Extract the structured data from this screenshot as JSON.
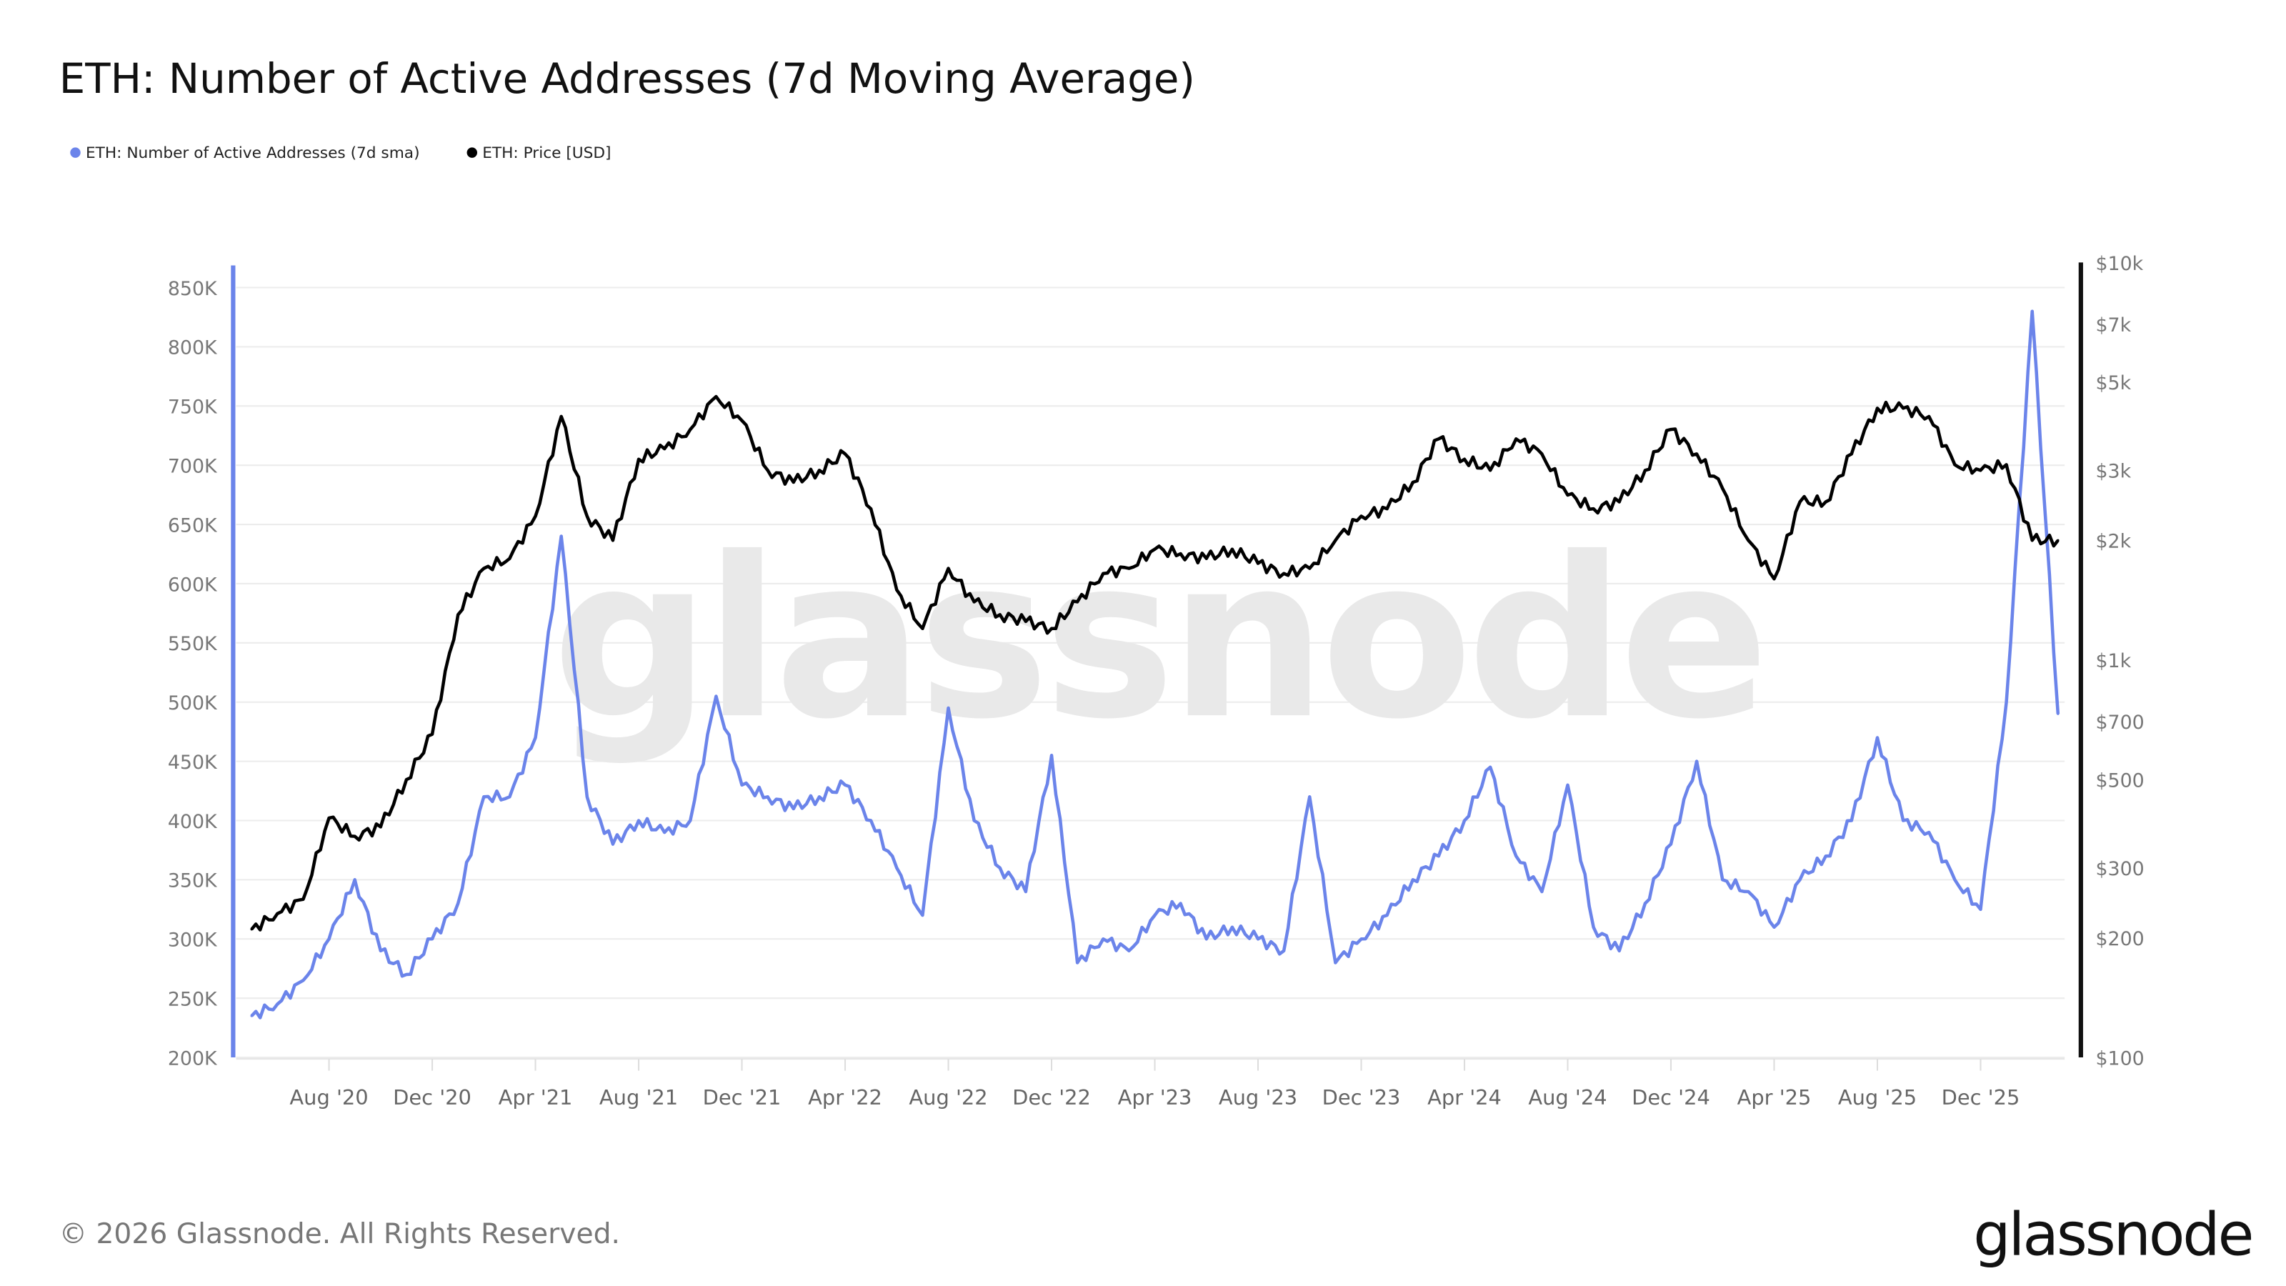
{
  "title": "ETH: Number of Active Addresses (7d Moving Average)",
  "footer": {
    "copyright": "© 2026 Glassnode. All Rights Reserved.",
    "logo": "glassnode"
  },
  "watermark": "glassnode",
  "colors": {
    "addresses": "#6b84ea",
    "price": "#000000",
    "grid": "#ececec"
  },
  "chart_data": {
    "type": "line",
    "title": "ETH: Number of Active Addresses (7d Moving Average)",
    "legend": [
      "ETH: Number of Active Addresses (7d sma)",
      "ETH: Price [USD]"
    ],
    "legend_position": "top-left",
    "x": [
      "2020-05",
      "2020-06",
      "2020-07",
      "2020-08",
      "2020-09",
      "2020-10",
      "2020-11",
      "2020-12",
      "2021-01",
      "2021-02",
      "2021-03",
      "2021-04",
      "2021-05",
      "2021-06",
      "2021-07",
      "2021-08",
      "2021-09",
      "2021-10",
      "2021-11",
      "2021-12",
      "2022-01",
      "2022-02",
      "2022-03",
      "2022-04",
      "2022-05",
      "2022-06",
      "2022-07",
      "2022-08",
      "2022-09",
      "2022-10",
      "2022-11",
      "2022-12",
      "2023-01",
      "2023-02",
      "2023-03",
      "2023-04",
      "2023-05",
      "2023-06",
      "2023-07",
      "2023-08",
      "2023-09",
      "2023-10",
      "2023-11",
      "2023-12",
      "2024-01",
      "2024-02",
      "2024-03",
      "2024-04",
      "2024-05",
      "2024-06",
      "2024-07",
      "2024-08",
      "2024-09",
      "2024-10",
      "2024-11",
      "2024-12",
      "2025-01",
      "2025-02",
      "2025-03",
      "2025-04",
      "2025-05",
      "2025-06",
      "2025-07",
      "2025-08",
      "2025-09",
      "2025-10",
      "2025-11",
      "2025-12",
      "2026-01",
      "2026-02",
      "2026-03"
    ],
    "series": [
      {
        "name": "ETH: Number of Active Addresses (7d sma)",
        "axis": "left",
        "values": [
          235,
          245,
          265,
          300,
          350,
          290,
          270,
          300,
          330,
          420,
          420,
          470,
          640,
          420,
          380,
          400,
          390,
          400,
          505,
          430,
          420,
          410,
          420,
          430,
          400,
          360,
          320,
          495,
          400,
          360,
          340,
          455,
          280,
          300,
          290,
          320,
          330,
          300,
          310,
          300,
          290,
          420,
          280,
          300,
          320,
          350,
          370,
          400,
          445,
          370,
          340,
          430,
          310,
          290,
          330,
          380,
          450,
          350,
          340,
          310,
          350,
          370,
          400,
          470,
          400,
          390,
          350,
          325,
          500,
          830,
          490
        ]
      },
      {
        "name": "ETH: Price [USD]",
        "axis": "right",
        "values": [
          210,
          230,
          250,
          400,
          360,
          380,
          500,
          650,
          1300,
          1700,
          1800,
          2300,
          4100,
          2300,
          2000,
          3200,
          3400,
          3800,
          4600,
          4000,
          3000,
          2800,
          3000,
          3300,
          2400,
          1500,
          1200,
          1700,
          1400,
          1300,
          1250,
          1200,
          1400,
          1650,
          1700,
          1900,
          1850,
          1800,
          1900,
          1750,
          1650,
          1700,
          2000,
          2300,
          2400,
          2800,
          3600,
          3200,
          3000,
          3600,
          3300,
          2600,
          2400,
          2500,
          3000,
          3800,
          3300,
          2700,
          2000,
          1600,
          2500,
          2500,
          3300,
          4300,
          4300,
          4100,
          3100,
          3000,
          3100,
          2000,
          2000
        ]
      }
    ],
    "x_ticks": [
      "Aug '20",
      "Dec '20",
      "Apr '21",
      "Aug '21",
      "Dec '21",
      "Apr '22",
      "Aug '22",
      "Dec '22",
      "Apr '23",
      "Aug '23",
      "Dec '23",
      "Apr '24",
      "Aug '24",
      "Dec '24",
      "Apr '25",
      "Aug '25",
      "Dec '25"
    ],
    "x_tick_dates": [
      "2020-08",
      "2020-12",
      "2021-04",
      "2021-08",
      "2021-12",
      "2022-04",
      "2022-08",
      "2022-12",
      "2023-04",
      "2023-08",
      "2023-12",
      "2024-04",
      "2024-08",
      "2024-12",
      "2025-04",
      "2025-08",
      "2025-12"
    ],
    "y_left": {
      "ylim": [
        200,
        850
      ],
      "ticks": [
        200,
        250,
        300,
        350,
        400,
        450,
        500,
        550,
        600,
        650,
        700,
        750,
        800,
        850
      ],
      "tick_labels": [
        "200K",
        "250K",
        "300K",
        "350K",
        "400K",
        "450K",
        "500K",
        "550K",
        "600K",
        "650K",
        "700K",
        "750K",
        "800K",
        "850K"
      ]
    },
    "y_right": {
      "scale": "log",
      "ylim": [
        100,
        10000
      ],
      "ticks": [
        100,
        200,
        300,
        500,
        700,
        1000,
        2000,
        3000,
        5000,
        7000,
        10000
      ],
      "tick_labels": [
        "$100",
        "$200",
        "$300",
        "$500",
        "$700",
        "$1k",
        "$2k",
        "$3k",
        "$5k",
        "$7k",
        "$10k"
      ]
    },
    "grid": true
  }
}
